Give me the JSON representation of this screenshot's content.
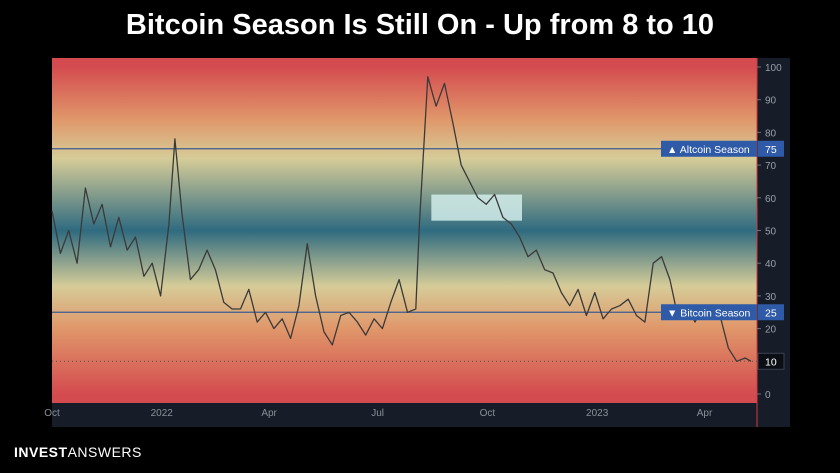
{
  "headline": "Bitcoin Season Is Still On - Up from 8 to 10",
  "brand": {
    "part1": "INVEST",
    "part2": "ANSWERS"
  },
  "colors": {
    "red": "#d44b4f",
    "orange": "#e0976a",
    "cream": "#d6cc98",
    "teal": "#2f6b80",
    "line": "#3a3a3a",
    "label_blue": "#2e5aa8",
    "axis_bg": "#171d28"
  },
  "chart_data": {
    "type": "line",
    "ylim": [
      0,
      100
    ],
    "yticks": [
      "0",
      "10",
      "20",
      "30",
      "40",
      "50",
      "60",
      "70",
      "80",
      "90",
      "100"
    ],
    "xlim": [
      "2021-10-01",
      "2023-05-15"
    ],
    "xticks": [
      {
        "label": "Oct",
        "date": "2021-10-01"
      },
      {
        "label": "2022",
        "date": "2022-01-01"
      },
      {
        "label": "Apr",
        "date": "2022-04-01"
      },
      {
        "label": "Jul",
        "date": "2022-07-01"
      },
      {
        "label": "Oct",
        "date": "2022-10-01"
      },
      {
        "label": "2023",
        "date": "2023-01-01"
      },
      {
        "label": "Apr",
        "date": "2023-04-01"
      }
    ],
    "hlines": [
      {
        "value": 75,
        "label": "▲ Altcoin Season",
        "value_label": "75"
      },
      {
        "value": 25,
        "label": "▼ Bitcoin Season",
        "value_label": "25"
      }
    ],
    "current": {
      "value": 10,
      "label": "10"
    },
    "highlight_box": {
      "x": [
        "2022-08-15",
        "2022-10-30"
      ],
      "y": [
        53,
        61
      ]
    },
    "series": [
      {
        "x": [
          "2021-10-01",
          "2021-10-08",
          "2021-10-15",
          "2021-10-22",
          "2021-10-29",
          "2021-11-05",
          "2021-11-12",
          "2021-11-19",
          "2021-11-26",
          "2021-12-03",
          "2021-12-10",
          "2021-12-17",
          "2021-12-24",
          "2021-12-31",
          "2022-01-07",
          "2022-01-12",
          "2022-01-18",
          "2022-01-25",
          "2022-02-01",
          "2022-02-08",
          "2022-02-15",
          "2022-02-22",
          "2022-03-01",
          "2022-03-08",
          "2022-03-15",
          "2022-03-22",
          "2022-03-29",
          "2022-04-05",
          "2022-04-12",
          "2022-04-19",
          "2022-04-26",
          "2022-05-03",
          "2022-05-10",
          "2022-05-17",
          "2022-05-24",
          "2022-05-31",
          "2022-06-07",
          "2022-06-14",
          "2022-06-21",
          "2022-06-28",
          "2022-07-05",
          "2022-07-12",
          "2022-07-19",
          "2022-07-26",
          "2022-08-02",
          "2022-08-05",
          "2022-08-12",
          "2022-08-19",
          "2022-08-26",
          "2022-09-02",
          "2022-09-09",
          "2022-09-16",
          "2022-09-23",
          "2022-09-30",
          "2022-10-07",
          "2022-10-14",
          "2022-10-21",
          "2022-10-28",
          "2022-11-04",
          "2022-11-11",
          "2022-11-18",
          "2022-11-25",
          "2022-12-02",
          "2022-12-09",
          "2022-12-16",
          "2022-12-23",
          "2022-12-30",
          "2023-01-06",
          "2023-01-13",
          "2023-01-20",
          "2023-01-27",
          "2023-02-03",
          "2023-02-10",
          "2023-02-17",
          "2023-02-24",
          "2023-03-03",
          "2023-03-10",
          "2023-03-17",
          "2023-03-24",
          "2023-03-31",
          "2023-04-07",
          "2023-04-14",
          "2023-04-21",
          "2023-04-28",
          "2023-05-05",
          "2023-05-10"
        ],
        "values": [
          56,
          43,
          50,
          40,
          63,
          52,
          58,
          45,
          54,
          44,
          48,
          36,
          40,
          30,
          52,
          78,
          55,
          35,
          38,
          44,
          38,
          28,
          26,
          26,
          32,
          22,
          25,
          20,
          23,
          17,
          27,
          46,
          30,
          19,
          15,
          24,
          25,
          22,
          18,
          23,
          20,
          28,
          35,
          25,
          26,
          52,
          97,
          88,
          95,
          83,
          70,
          65,
          60,
          58,
          61,
          54,
          52,
          48,
          42,
          44,
          38,
          37,
          31,
          27,
          32,
          24,
          31,
          23,
          26,
          27,
          29,
          24,
          22,
          40,
          42,
          35,
          23,
          27,
          22,
          27,
          25,
          24,
          14,
          10,
          11,
          10
        ]
      }
    ]
  }
}
